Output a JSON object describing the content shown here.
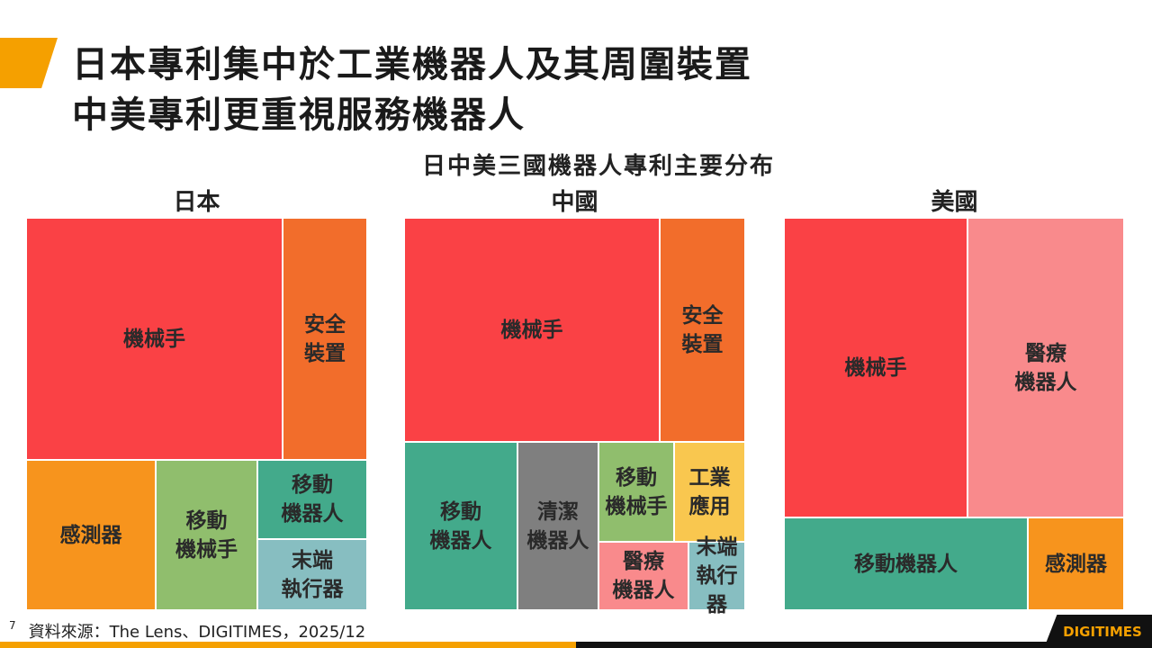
{
  "title_lines": [
    "日本專利集中於工業機器人及其周圍裝置",
    "中美專利更重視服務機器人"
  ],
  "footer": {
    "page": "7",
    "source": "資料來源：The Lens、DIGITIMES，2025/12"
  },
  "logo": "DIGITIMES",
  "chart_data": {
    "type": "treemap",
    "title": "日中美三國機器人專利主要分布",
    "charts": [
      {
        "name": "日本",
        "items": [
          {
            "label": "機械手",
            "share_pct": 46,
            "color": "#fa4145"
          },
          {
            "label": "安全\n裝置",
            "share_pct": 15,
            "color": "#f26d2b"
          },
          {
            "label": "感測器",
            "share_pct": 14,
            "color": "#f7941d"
          },
          {
            "label": "移動\n機械手",
            "share_pct": 11,
            "color": "#90be6d"
          },
          {
            "label": "移動\n機器人",
            "share_pct": 6,
            "color": "#43aa8b"
          },
          {
            "label": "末端\n執行器",
            "share_pct": 6,
            "color": "#87bec1"
          }
        ]
      },
      {
        "name": "中國",
        "items": [
          {
            "label": "機械手",
            "share_pct": 43,
            "color": "#fa4145"
          },
          {
            "label": "安全\n裝置",
            "share_pct": 14,
            "color": "#f26d2b"
          },
          {
            "label": "移動\n機器人",
            "share_pct": 14,
            "color": "#43aa8b"
          },
          {
            "label": "清潔\n機器人",
            "share_pct": 10,
            "color": "#7f7f7f"
          },
          {
            "label": "移動\n機械手",
            "share_pct": 5,
            "color": "#90be6d"
          },
          {
            "label": "工業\n應用",
            "share_pct": 5,
            "color": "#f9c74f"
          },
          {
            "label": "醫療\n機器人",
            "share_pct": 4,
            "color": "#f98a8c"
          },
          {
            "label": "末端\n執行器",
            "share_pct": 3,
            "color": "#87bec1"
          }
        ]
      },
      {
        "name": "美國",
        "items": [
          {
            "label": "機械手",
            "share_pct": 41,
            "color": "#fa4145"
          },
          {
            "label": "醫療\n機器人",
            "share_pct": 35,
            "color": "#f98a8c"
          },
          {
            "label": "移動機器人",
            "share_pct": 17,
            "color": "#43aa8b"
          },
          {
            "label": "感測器",
            "share_pct": 6,
            "color": "#f7941d"
          }
        ]
      }
    ]
  }
}
